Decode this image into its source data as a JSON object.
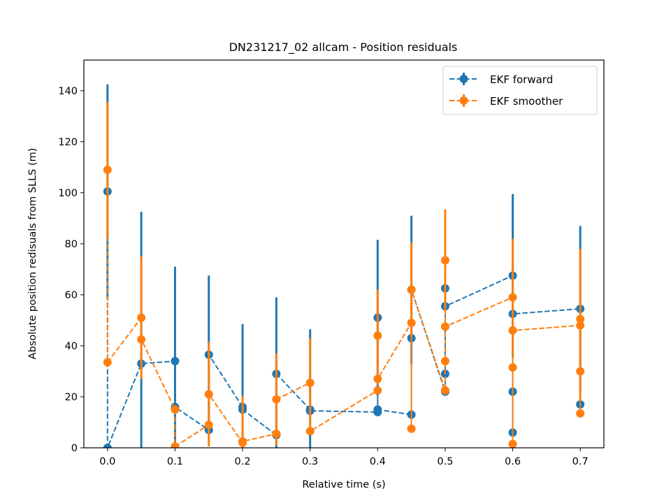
{
  "chart_data": {
    "type": "line",
    "title": "DN231217_02 allcam - Position residuals",
    "xlabel": "Relative time (s)",
    "ylabel": "Absolute position redisuals from SLLS (m)",
    "xlim": [
      -0.035,
      0.735
    ],
    "ylim": [
      0,
      152
    ],
    "xticks": [
      0.0,
      0.1,
      0.2,
      0.3,
      0.4,
      0.5,
      0.6,
      0.7
    ],
    "xtick_labels": [
      "0.0",
      "0.1",
      "0.2",
      "0.3",
      "0.4",
      "0.5",
      "0.6",
      "0.7"
    ],
    "yticks": [
      0,
      20,
      40,
      60,
      80,
      100,
      120,
      140
    ],
    "ytick_labels": [
      "0",
      "20",
      "40",
      "60",
      "80",
      "100",
      "120",
      "140"
    ],
    "grid": false,
    "legend_position": "top-right",
    "series": [
      {
        "name": "EKF forward",
        "color": "#1f77b4",
        "line_style": "dashed",
        "marker": "circle",
        "points": [
          {
            "x": 0.0,
            "y": 100.5,
            "err": 42
          },
          {
            "x": 0.0,
            "y": 0,
            "err": 0
          },
          {
            "x": 0.05,
            "y": 33,
            "err": 59.5
          },
          {
            "x": 0.1,
            "y": 34,
            "err": 37
          },
          {
            "x": 0.1,
            "y": 16,
            "err": 0
          },
          {
            "x": 0.15,
            "y": 7,
            "err": 0
          },
          {
            "x": 0.15,
            "y": 36.5,
            "err": 31
          },
          {
            "x": 0.2,
            "y": 16,
            "err": 32.5
          },
          {
            "x": 0.2,
            "y": 15,
            "err": 0
          },
          {
            "x": 0.25,
            "y": 5,
            "err": 0
          },
          {
            "x": 0.25,
            "y": 29,
            "err": 30
          },
          {
            "x": 0.3,
            "y": 15,
            "err": 31.5
          },
          {
            "x": 0.3,
            "y": 14.5,
            "err": 0
          },
          {
            "x": 0.4,
            "y": 14,
            "err": 0
          },
          {
            "x": 0.4,
            "y": 51,
            "err": 30.5
          },
          {
            "x": 0.4,
            "y": 15,
            "err": 0
          },
          {
            "x": 0.45,
            "y": 13,
            "err": 0
          },
          {
            "x": 0.45,
            "y": 43,
            "err": 0
          },
          {
            "x": 0.45,
            "y": 62,
            "err": 29
          },
          {
            "x": 0.5,
            "y": 22,
            "err": 0
          },
          {
            "x": 0.5,
            "y": 29,
            "err": 0
          },
          {
            "x": 0.5,
            "y": 62.5,
            "err": 0
          },
          {
            "x": 0.5,
            "y": 55.5,
            "err": 0
          },
          {
            "x": 0.6,
            "y": 67.5,
            "err": 32
          },
          {
            "x": 0.6,
            "y": 6,
            "err": 0
          },
          {
            "x": 0.6,
            "y": 22,
            "err": 0
          },
          {
            "x": 0.6,
            "y": 52.5,
            "err": 0
          },
          {
            "x": 0.7,
            "y": 54.5,
            "err": 32.5
          },
          {
            "x": 0.7,
            "y": 17,
            "err": 0
          }
        ]
      },
      {
        "name": "EKF smoother",
        "color": "#ff7f0e",
        "line_style": "dashed",
        "marker": "circle",
        "points": [
          {
            "x": 0.0,
            "y": 109,
            "err": 26.5
          },
          {
            "x": 0.0,
            "y": 33.5,
            "err": 0
          },
          {
            "x": 0.05,
            "y": 51,
            "err": 24
          },
          {
            "x": 0.05,
            "y": 42.5,
            "err": 0
          },
          {
            "x": 0.1,
            "y": 15,
            "err": 0
          },
          {
            "x": 0.1,
            "y": 0.5,
            "err": 0
          },
          {
            "x": 0.15,
            "y": 9,
            "err": 0
          },
          {
            "x": 0.15,
            "y": 21,
            "err": 20.5
          },
          {
            "x": 0.2,
            "y": 2,
            "err": 0
          },
          {
            "x": 0.2,
            "y": 2.5,
            "err": 18
          },
          {
            "x": 0.25,
            "y": 5.5,
            "err": 0
          },
          {
            "x": 0.25,
            "y": 19,
            "err": 18
          },
          {
            "x": 0.3,
            "y": 25.5,
            "err": 17.5
          },
          {
            "x": 0.3,
            "y": 6.5,
            "err": 0
          },
          {
            "x": 0.4,
            "y": 22.5,
            "err": 0
          },
          {
            "x": 0.4,
            "y": 44,
            "err": 18
          },
          {
            "x": 0.4,
            "y": 27,
            "err": 0
          },
          {
            "x": 0.45,
            "y": 49,
            "err": 0
          },
          {
            "x": 0.45,
            "y": 7.5,
            "err": 0
          },
          {
            "x": 0.45,
            "y": 62,
            "err": 18.5
          },
          {
            "x": 0.5,
            "y": 22.5,
            "err": 0
          },
          {
            "x": 0.5,
            "y": 34,
            "err": 0
          },
          {
            "x": 0.5,
            "y": 73.5,
            "err": 20
          },
          {
            "x": 0.5,
            "y": 47.5,
            "err": 0
          },
          {
            "x": 0.6,
            "y": 59,
            "err": 23
          },
          {
            "x": 0.6,
            "y": 1.5,
            "err": 0
          },
          {
            "x": 0.6,
            "y": 31.5,
            "err": 0
          },
          {
            "x": 0.6,
            "y": 46,
            "err": 0
          },
          {
            "x": 0.7,
            "y": 48,
            "err": 30
          },
          {
            "x": 0.7,
            "y": 30,
            "err": 0
          },
          {
            "x": 0.7,
            "y": 13.5,
            "err": 0
          },
          {
            "x": 0.7,
            "y": 50.5,
            "err": 0
          }
        ]
      }
    ]
  }
}
